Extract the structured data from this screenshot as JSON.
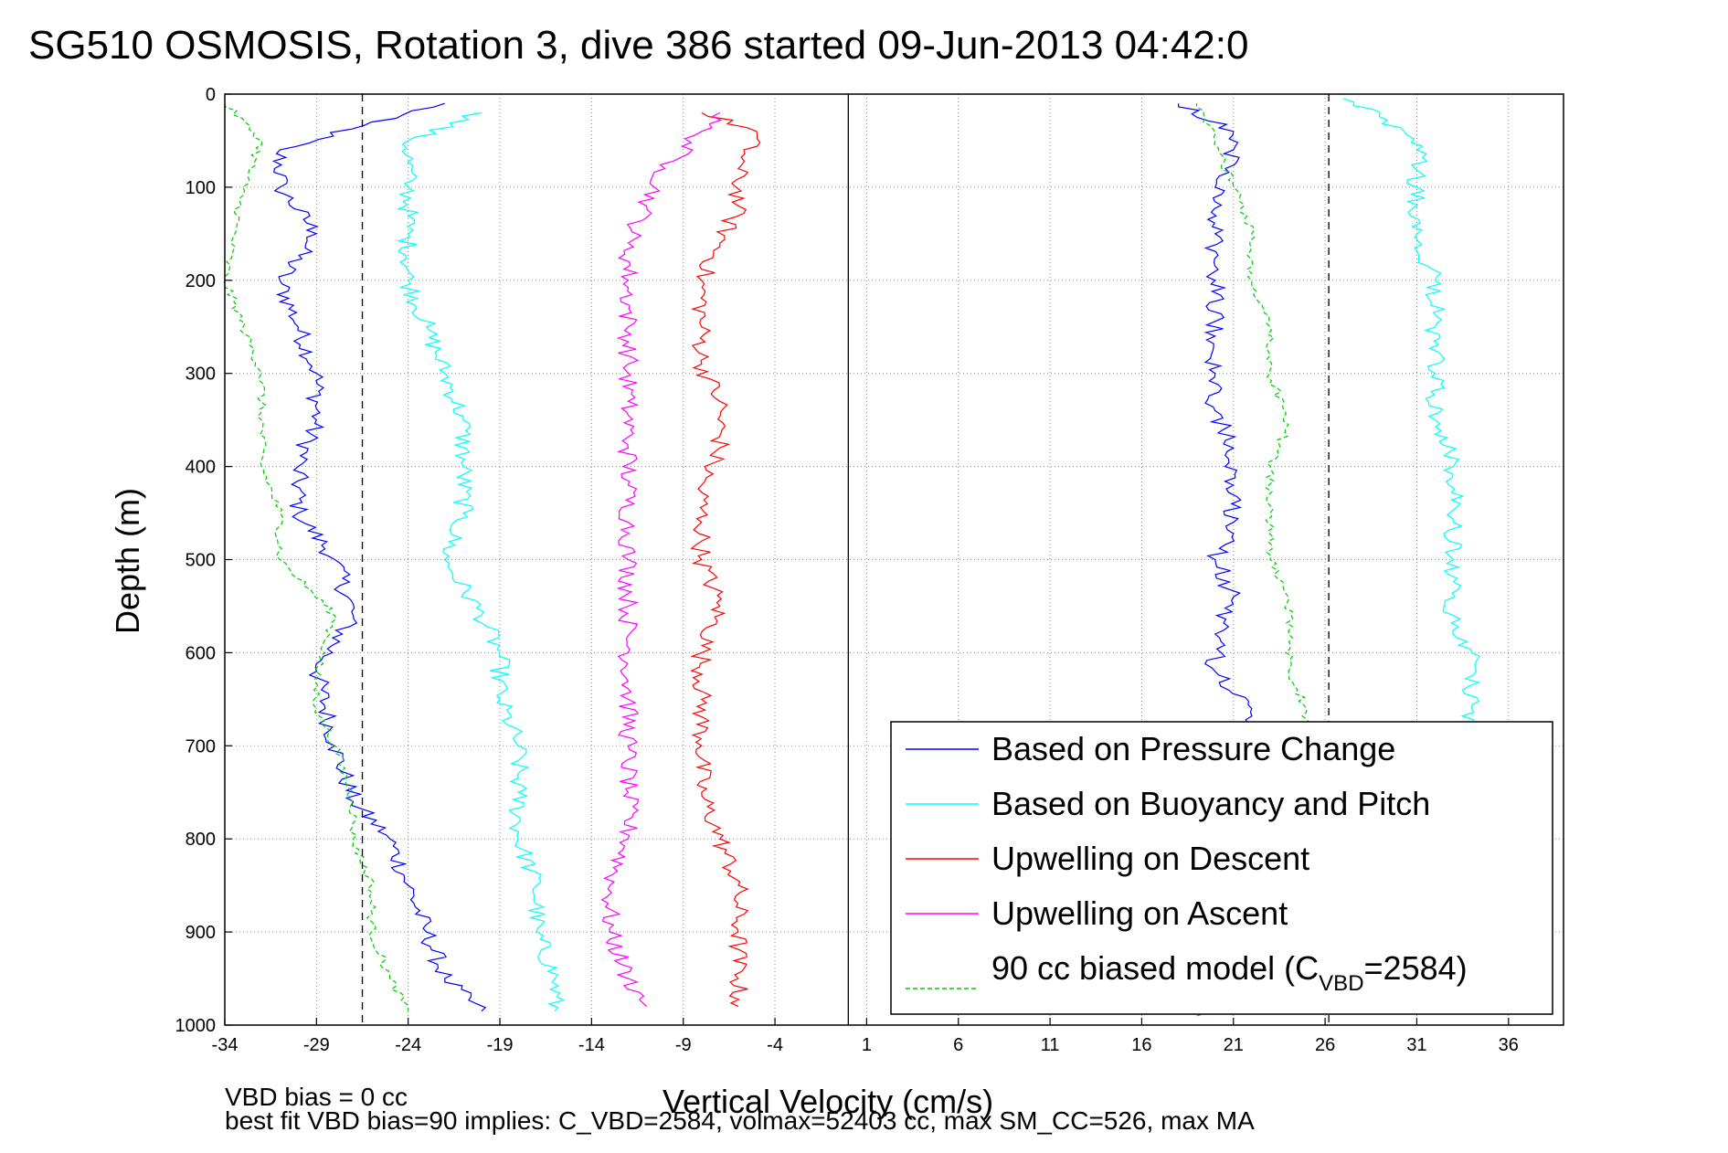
{
  "figure": {
    "title": "SG510 OSMOSIS, Rotation 3, dive 386 started 09-Jun-2013 04:42:0",
    "notes": {
      "line1": "VBD bias = 0 cc",
      "line2": "best fit VBD bias=90 implies: C_VBD=2584, volmax=52403 cc, max SM_CC=526, max MA"
    },
    "legend_position": "bottom-right"
  },
  "chart_data": {
    "type": "line",
    "title": "SG510 OSMOSIS, Rotation 3, dive 386 started 09-Jun-2013 04:42:0",
    "xlabel": "Vertical Velocity (cm/s)",
    "ylabel": "Depth (m)",
    "xlim": [
      -34,
      39
    ],
    "ylim": [
      0,
      1000
    ],
    "y_reversed": true,
    "grid": true,
    "x_ticks": [
      -34,
      -29,
      -24,
      -19,
      -14,
      -9,
      -4,
      1,
      6,
      11,
      16,
      21,
      26,
      31,
      36
    ],
    "y_ticks": [
      0,
      100,
      200,
      300,
      400,
      500,
      600,
      700,
      800,
      900,
      1000
    ],
    "reference_lines": [
      {
        "orientation": "vertical",
        "x": -26.5,
        "style": "dashed",
        "color": "#000000"
      },
      {
        "orientation": "vertical",
        "x": 26.2,
        "style": "dashed",
        "color": "#000000"
      },
      {
        "orientation": "vertical",
        "x": 0,
        "style": "solid",
        "color": "#000000"
      }
    ],
    "legend": {
      "position": "bottom-right",
      "entries": [
        {
          "label": "Based on Pressure Change",
          "color": "#0000ff",
          "style": "solid"
        },
        {
          "label": "Based on Buoyancy and Pitch",
          "color": "#00ffff",
          "style": "solid"
        },
        {
          "label": "Upwelling on Descent",
          "color": "#ff0000",
          "style": "solid"
        },
        {
          "label": "Upwelling on Ascent",
          "color": "#ff00ff",
          "style": "solid"
        },
        {
          "label_prefix": "90 cc biased model (C",
          "label_sub": "VBD",
          "label_suffix": "=2584)",
          "color": "#00cc00",
          "style": "dashed"
        }
      ]
    },
    "series": [
      {
        "key": "pressure_descent",
        "color": "#0000ff",
        "style": "solid",
        "points": [
          [
            -22,
            10
          ],
          [
            -26,
            30
          ],
          [
            -31,
            60
          ],
          [
            -31,
            100
          ],
          [
            -29,
            150
          ],
          [
            -31,
            200
          ],
          [
            -30,
            250
          ],
          [
            -29,
            300
          ],
          [
            -29,
            350
          ],
          [
            -30,
            400
          ],
          [
            -30,
            450
          ],
          [
            -28,
            500
          ],
          [
            -27,
            560
          ],
          [
            -29,
            620
          ],
          [
            -28,
            700
          ],
          [
            -27,
            760
          ],
          [
            -25,
            800
          ],
          [
            -24,
            850
          ],
          [
            -23,
            900
          ],
          [
            -22,
            950
          ],
          [
            -20,
            985
          ]
        ]
      },
      {
        "key": "pressure_ascent",
        "color": "#0000ff",
        "style": "solid",
        "points": [
          [
            16,
            980
          ],
          [
            21,
            950
          ],
          [
            21,
            900
          ],
          [
            21,
            850
          ],
          [
            21,
            800
          ],
          [
            21,
            760
          ],
          [
            21,
            700
          ],
          [
            22,
            660
          ],
          [
            20,
            620
          ],
          [
            20,
            580
          ],
          [
            21,
            540
          ],
          [
            20,
            500
          ],
          [
            21,
            460
          ],
          [
            21,
            420
          ],
          [
            21,
            380
          ],
          [
            20,
            340
          ],
          [
            20,
            300
          ],
          [
            20,
            260
          ],
          [
            20,
            200
          ],
          [
            20,
            150
          ],
          [
            20,
            100
          ],
          [
            21,
            60
          ],
          [
            21,
            40
          ],
          [
            18,
            10
          ]
        ]
      },
      {
        "key": "buoyancy_descent",
        "color": "#00ffff",
        "style": "solid",
        "points": [
          [
            -20,
            20
          ],
          [
            -24,
            50
          ],
          [
            -24,
            100
          ],
          [
            -24,
            150
          ],
          [
            -24,
            200
          ],
          [
            -23,
            250
          ],
          [
            -22,
            300
          ],
          [
            -21,
            350
          ],
          [
            -21,
            400
          ],
          [
            -21,
            450
          ],
          [
            -22,
            500
          ],
          [
            -20,
            560
          ],
          [
            -19,
            600
          ],
          [
            -19,
            650
          ],
          [
            -18,
            700
          ],
          [
            -18,
            750
          ],
          [
            -18,
            800
          ],
          [
            -17,
            850
          ],
          [
            -17,
            900
          ],
          [
            -16,
            950
          ],
          [
            -16,
            985
          ]
        ]
      },
      {
        "key": "buoyancy_ascent",
        "color": "#00ffff",
        "style": "solid",
        "points": [
          [
            30,
            985
          ],
          [
            36,
            950
          ],
          [
            36,
            900
          ],
          [
            35,
            850
          ],
          [
            35,
            800
          ],
          [
            34,
            700
          ],
          [
            34,
            660
          ],
          [
            34,
            600
          ],
          [
            33,
            560
          ],
          [
            33,
            500
          ],
          [
            33,
            460
          ],
          [
            33,
            400
          ],
          [
            32,
            350
          ],
          [
            32,
            300
          ],
          [
            32,
            250
          ],
          [
            32,
            200
          ],
          [
            31,
            150
          ],
          [
            31,
            100
          ],
          [
            31,
            60
          ],
          [
            29,
            20
          ],
          [
            27,
            5
          ]
        ]
      },
      {
        "key": "upwelling_descent",
        "color": "#ff0000",
        "style": "solid",
        "points": [
          [
            -8,
            20
          ],
          [
            -5,
            40
          ],
          [
            -6,
            80
          ],
          [
            -6,
            120
          ],
          [
            -7,
            160
          ],
          [
            -8,
            200
          ],
          [
            -8,
            250
          ],
          [
            -8,
            290
          ],
          [
            -7,
            330
          ],
          [
            -7,
            380
          ],
          [
            -8,
            420
          ],
          [
            -8,
            460
          ],
          [
            -8,
            500
          ],
          [
            -7,
            550
          ],
          [
            -8,
            600
          ],
          [
            -8,
            650
          ],
          [
            -8,
            700
          ],
          [
            -8,
            750
          ],
          [
            -7,
            800
          ],
          [
            -6,
            850
          ],
          [
            -6,
            900
          ],
          [
            -6,
            950
          ],
          [
            -6,
            980
          ]
        ]
      },
      {
        "key": "upwelling_ascent",
        "color": "#ff00ff",
        "style": "solid",
        "points": [
          [
            -7,
            20
          ],
          [
            -8,
            40
          ],
          [
            -10,
            80
          ],
          [
            -11,
            120
          ],
          [
            -12,
            160
          ],
          [
            -12,
            200
          ],
          [
            -12,
            250
          ],
          [
            -12,
            290
          ],
          [
            -12,
            330
          ],
          [
            -12,
            380
          ],
          [
            -12,
            420
          ],
          [
            -12,
            460
          ],
          [
            -12,
            500
          ],
          [
            -12,
            550
          ],
          [
            -12,
            600
          ],
          [
            -12,
            650
          ],
          [
            -12,
            700
          ],
          [
            -12,
            750
          ],
          [
            -12,
            800
          ],
          [
            -13,
            850
          ],
          [
            -13,
            900
          ],
          [
            -12,
            950
          ],
          [
            -11,
            980
          ]
        ]
      },
      {
        "key": "model_descent",
        "color": "#00cc00",
        "style": "dashed",
        "points": [
          [
            -34,
            10
          ],
          [
            -32,
            50
          ],
          [
            -33,
            100
          ],
          [
            -34,
            200
          ],
          [
            -33,
            250
          ],
          [
            -32,
            300
          ],
          [
            -32,
            350
          ],
          [
            -32,
            400
          ],
          [
            -31,
            450
          ],
          [
            -31,
            500
          ],
          [
            -28,
            560
          ],
          [
            -29,
            620
          ],
          [
            -29,
            660
          ],
          [
            -28,
            700
          ],
          [
            -27,
            760
          ],
          [
            -27,
            800
          ],
          [
            -26,
            850
          ],
          [
            -26,
            900
          ],
          [
            -25,
            950
          ],
          [
            -24,
            985
          ]
        ]
      },
      {
        "key": "model_ascent",
        "color": "#00cc00",
        "style": "dashed",
        "points": [
          [
            19,
            990
          ],
          [
            25,
            950
          ],
          [
            25,
            900
          ],
          [
            25,
            850
          ],
          [
            25,
            800
          ],
          [
            25,
            700
          ],
          [
            25,
            660
          ],
          [
            24,
            620
          ],
          [
            24,
            580
          ],
          [
            24,
            540
          ],
          [
            23,
            500
          ],
          [
            23,
            450
          ],
          [
            23,
            400
          ],
          [
            24,
            355
          ],
          [
            23,
            300
          ],
          [
            23,
            250
          ],
          [
            22,
            200
          ],
          [
            22,
            150
          ],
          [
            21,
            100
          ],
          [
            20,
            50
          ],
          [
            19,
            10
          ]
        ]
      }
    ]
  }
}
